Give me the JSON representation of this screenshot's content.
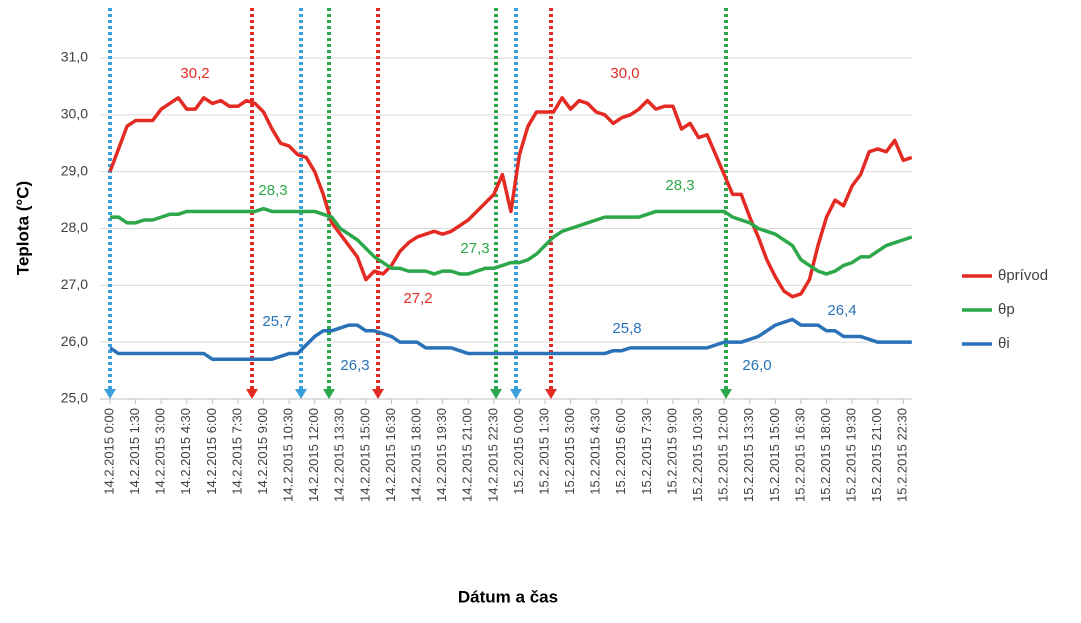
{
  "chart_data": {
    "type": "line",
    "y_label": "Teplota (°C)",
    "x_label": "Dátum a čas",
    "categories": [
      "14.2.2015 0:00",
      null,
      null,
      "14.2.2015 1:30",
      null,
      null,
      "14.2.2015 3:00",
      null,
      null,
      "14.2.2015 4:30",
      null,
      null,
      "14.2.2015 6:00",
      null,
      null,
      "14.2.2015 7:30",
      null,
      null,
      "14.2.2015 9:00",
      null,
      null,
      "14.2.2015 10:30",
      null,
      null,
      "14.2.2015 12:00",
      null,
      null,
      "14.2.2015 13:30",
      null,
      null,
      "14.2.2015 15:00",
      null,
      null,
      "14.2.2015 16:30",
      null,
      null,
      "14.2.2015 18:00",
      null,
      null,
      "14.2.2015 19:30",
      null,
      null,
      "14.2.2015 21:00",
      null,
      null,
      "14.2.2015 22:30",
      null,
      null,
      "15.2.2015 0:00",
      null,
      null,
      "15.2.2015 1:30",
      null,
      null,
      "15.2.2015 3:00",
      null,
      null,
      "15.2.2015 4:30",
      null,
      null,
      "15.2.2015 6:00",
      null,
      null,
      "15.2.2015 7:30",
      null,
      null,
      "15.2.2015 9:00",
      null,
      null,
      "15.2.2015 10:30",
      null,
      null,
      "15.2.2015 12:00",
      null,
      null,
      "15.2.2015 13:30",
      null,
      null,
      "15.2.2015 15:00",
      null,
      null,
      "15.2.2015 16:30",
      null,
      null,
      "15.2.2015 18:00",
      null,
      null,
      "15.2.2015 19:30",
      null,
      null,
      "15.2.2015 21:00",
      null,
      null,
      "15.2.2015 22:30",
      null
    ],
    "series": [
      {
        "name": "θprívod",
        "color": "#e32b24",
        "values": [
          29.0,
          29.4,
          29.8,
          29.9,
          29.9,
          29.9,
          30.1,
          30.2,
          30.3,
          30.1,
          30.1,
          30.3,
          30.2,
          30.25,
          30.15,
          30.15,
          30.25,
          30.2,
          30.05,
          29.75,
          29.5,
          29.45,
          29.3,
          29.25,
          29.0,
          28.6,
          28.1,
          27.9,
          27.7,
          27.5,
          27.1,
          27.25,
          27.2,
          27.35,
          27.6,
          27.75,
          27.85,
          27.9,
          27.95,
          27.9,
          27.95,
          28.05,
          28.15,
          28.3,
          28.45,
          28.6,
          28.95,
          28.3,
          29.3,
          29.8,
          30.05,
          30.05,
          30.05,
          30.3,
          30.1,
          30.25,
          30.2,
          30.05,
          30.0,
          29.85,
          29.95,
          30.0,
          30.1,
          30.25,
          30.1,
          30.15,
          30.15,
          29.75,
          29.85,
          29.6,
          29.65,
          29.3,
          28.95,
          28.6,
          28.6,
          28.2,
          27.85,
          27.45,
          27.15,
          26.9,
          26.8,
          26.85,
          27.1,
          27.7,
          28.2,
          28.5,
          28.4,
          28.75,
          28.95,
          29.35,
          29.4,
          29.35,
          29.55,
          29.2,
          29.25
        ]
      },
      {
        "name": "θp",
        "color": "#2ca84a",
        "values": [
          28.2,
          28.2,
          28.1,
          28.1,
          28.15,
          28.15,
          28.2,
          28.25,
          28.25,
          28.3,
          28.3,
          28.3,
          28.3,
          28.3,
          28.3,
          28.3,
          28.3,
          28.3,
          28.35,
          28.3,
          28.3,
          28.3,
          28.3,
          28.3,
          28.3,
          28.25,
          28.2,
          28.0,
          27.9,
          27.8,
          27.65,
          27.5,
          27.4,
          27.3,
          27.3,
          27.25,
          27.25,
          27.25,
          27.2,
          27.25,
          27.25,
          27.2,
          27.2,
          27.25,
          27.3,
          27.3,
          27.35,
          27.4,
          27.4,
          27.45,
          27.55,
          27.7,
          27.85,
          27.95,
          28.0,
          28.05,
          28.1,
          28.15,
          28.2,
          28.2,
          28.2,
          28.2,
          28.2,
          28.25,
          28.3,
          28.3,
          28.3,
          28.3,
          28.3,
          28.3,
          28.3,
          28.3,
          28.3,
          28.2,
          28.15,
          28.1,
          28.0,
          27.95,
          27.9,
          27.8,
          27.7,
          27.45,
          27.35,
          27.25,
          27.2,
          27.25,
          27.35,
          27.4,
          27.5,
          27.5,
          27.6,
          27.7,
          27.75,
          27.8,
          27.85
        ]
      },
      {
        "name": "θi",
        "color": "#2a72b8",
        "values": [
          25.9,
          25.8,
          25.8,
          25.8,
          25.8,
          25.8,
          25.8,
          25.8,
          25.8,
          25.8,
          25.8,
          25.8,
          25.7,
          25.7,
          25.7,
          25.7,
          25.7,
          25.7,
          25.7,
          25.7,
          25.75,
          25.8,
          25.8,
          25.95,
          26.1,
          26.2,
          26.2,
          26.25,
          26.3,
          26.3,
          26.2,
          26.2,
          26.15,
          26.1,
          26.0,
          26.0,
          26.0,
          25.9,
          25.9,
          25.9,
          25.9,
          25.85,
          25.8,
          25.8,
          25.8,
          25.8,
          25.8,
          25.8,
          25.8,
          25.8,
          25.8,
          25.8,
          25.8,
          25.8,
          25.8,
          25.8,
          25.8,
          25.8,
          25.8,
          25.85,
          25.85,
          25.9,
          25.9,
          25.9,
          25.9,
          25.9,
          25.9,
          25.9,
          25.9,
          25.9,
          25.9,
          25.95,
          26.0,
          26.0,
          26.0,
          26.05,
          26.1,
          26.2,
          26.3,
          26.35,
          26.4,
          26.3,
          26.3,
          26.3,
          26.2,
          26.2,
          26.1,
          26.1,
          26.1,
          26.05,
          26.0,
          26.0,
          26.0,
          26.0,
          26.0
        ]
      }
    ],
    "ylim": [
      25,
      31
    ],
    "yticks": [
      {
        "value": 25,
        "label": "25,0"
      },
      {
        "value": 26,
        "label": "26,0"
      },
      {
        "value": 27,
        "label": "27,0"
      },
      {
        "value": 28,
        "label": "28,0"
      },
      {
        "value": 29,
        "label": "29,0"
      },
      {
        "value": 30,
        "label": "30,0"
      },
      {
        "value": 31,
        "label": "31,0"
      }
    ],
    "grid": true,
    "legend": "right",
    "annotations": [
      {
        "text": "30,2",
        "color": "#e32b24"
      },
      {
        "text": "30,0",
        "color": "#e32b24"
      },
      {
        "text": "27,2",
        "color": "#e32b24"
      },
      {
        "text": "28,3",
        "color": "#2ca84a"
      },
      {
        "text": "27,3",
        "color": "#2ca84a"
      },
      {
        "text": "28,3",
        "color": "#2ca84a"
      },
      {
        "text": "25,7",
        "color": "#2a72b8"
      },
      {
        "text": "26,3",
        "color": "#2a72b8"
      },
      {
        "text": "25,8",
        "color": "#2a72b8"
      },
      {
        "text": "26,4",
        "color": "#2a72b8"
      },
      {
        "text": "26,0",
        "color": "#2a72b8"
      }
    ]
  }
}
